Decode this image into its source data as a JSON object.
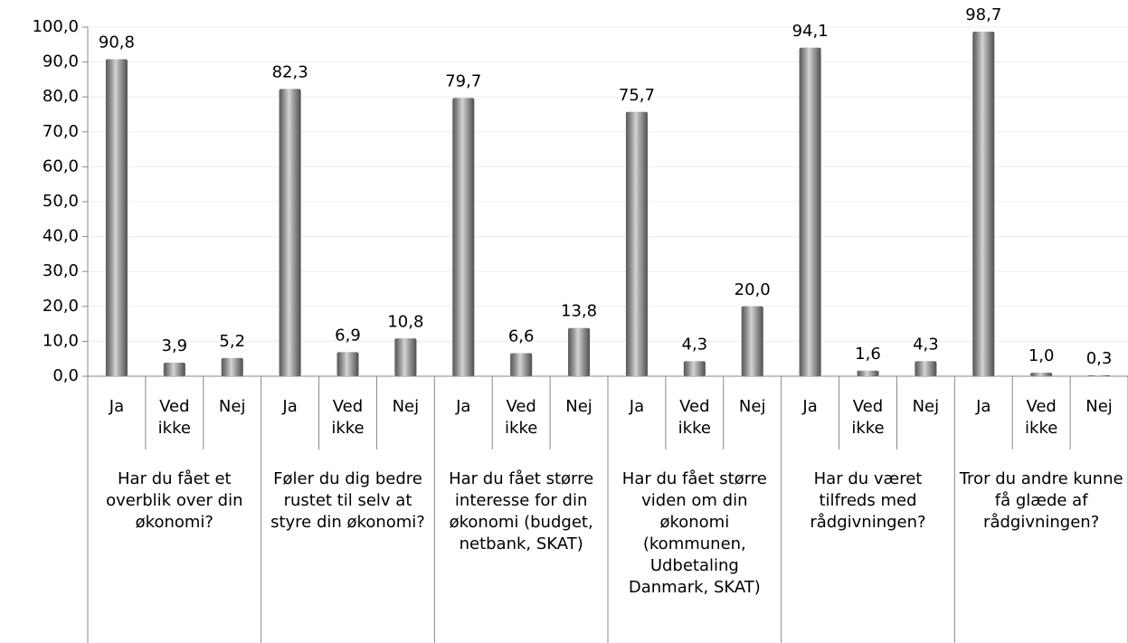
{
  "chart_data": {
    "type": "bar",
    "categories": [
      "Ja",
      "Ved ikke",
      "Nej",
      "Ja",
      "Ved ikke",
      "Nej",
      "Ja",
      "Ved ikke",
      "Nej",
      "Ja",
      "Ved ikke",
      "Nej",
      "Ja",
      "Ved ikke",
      "Nej",
      "Ja",
      "Ved ikke",
      "Nej"
    ],
    "groups": [
      "Har du fået et overblik over din økonomi?",
      "Føler du dig bedre rustet til selv at styre din økonomi?",
      "Har du fået større interesse for din økonomi (budget, netbank, SKAT)",
      "Har du fået større viden om din økonomi (kommunen, Udbetaling Danmark, SKAT)",
      "Har du været tilfreds med rådgivningen?",
      "Tror du andre kunne få glæde af rådgivningen?"
    ],
    "values": [
      90.8,
      3.9,
      5.2,
      82.3,
      6.9,
      10.8,
      79.7,
      6.6,
      13.8,
      75.7,
      4.3,
      20.0,
      94.1,
      1.6,
      4.3,
      98.7,
      1.0,
      0.3
    ],
    "value_labels": [
      "90,8",
      "3,9",
      "5,2",
      "82,3",
      "6,9",
      "10,8",
      "79,7",
      "6,6",
      "13,8",
      "75,7",
      "4,3",
      "20,0",
      "94,1",
      "1,6",
      "4,3",
      "98,7",
      "1,0",
      "0,3"
    ],
    "color": "#a0a0a0",
    "ylim": [
      0,
      100
    ],
    "yticks": [
      {
        "value": 0,
        "label": "0,0"
      },
      {
        "value": 10,
        "label": "10,0"
      },
      {
        "value": 20,
        "label": "20,0"
      },
      {
        "value": 30,
        "label": "30,0"
      },
      {
        "value": 40,
        "label": "40,0"
      },
      {
        "value": 50,
        "label": "50,0"
      },
      {
        "value": 60,
        "label": "60,0"
      },
      {
        "value": 70,
        "label": "70,0"
      },
      {
        "value": 80,
        "label": "80,0"
      },
      {
        "value": 90,
        "label": "90,0"
      },
      {
        "value": 100,
        "label": "100,0"
      }
    ],
    "grid": true
  }
}
